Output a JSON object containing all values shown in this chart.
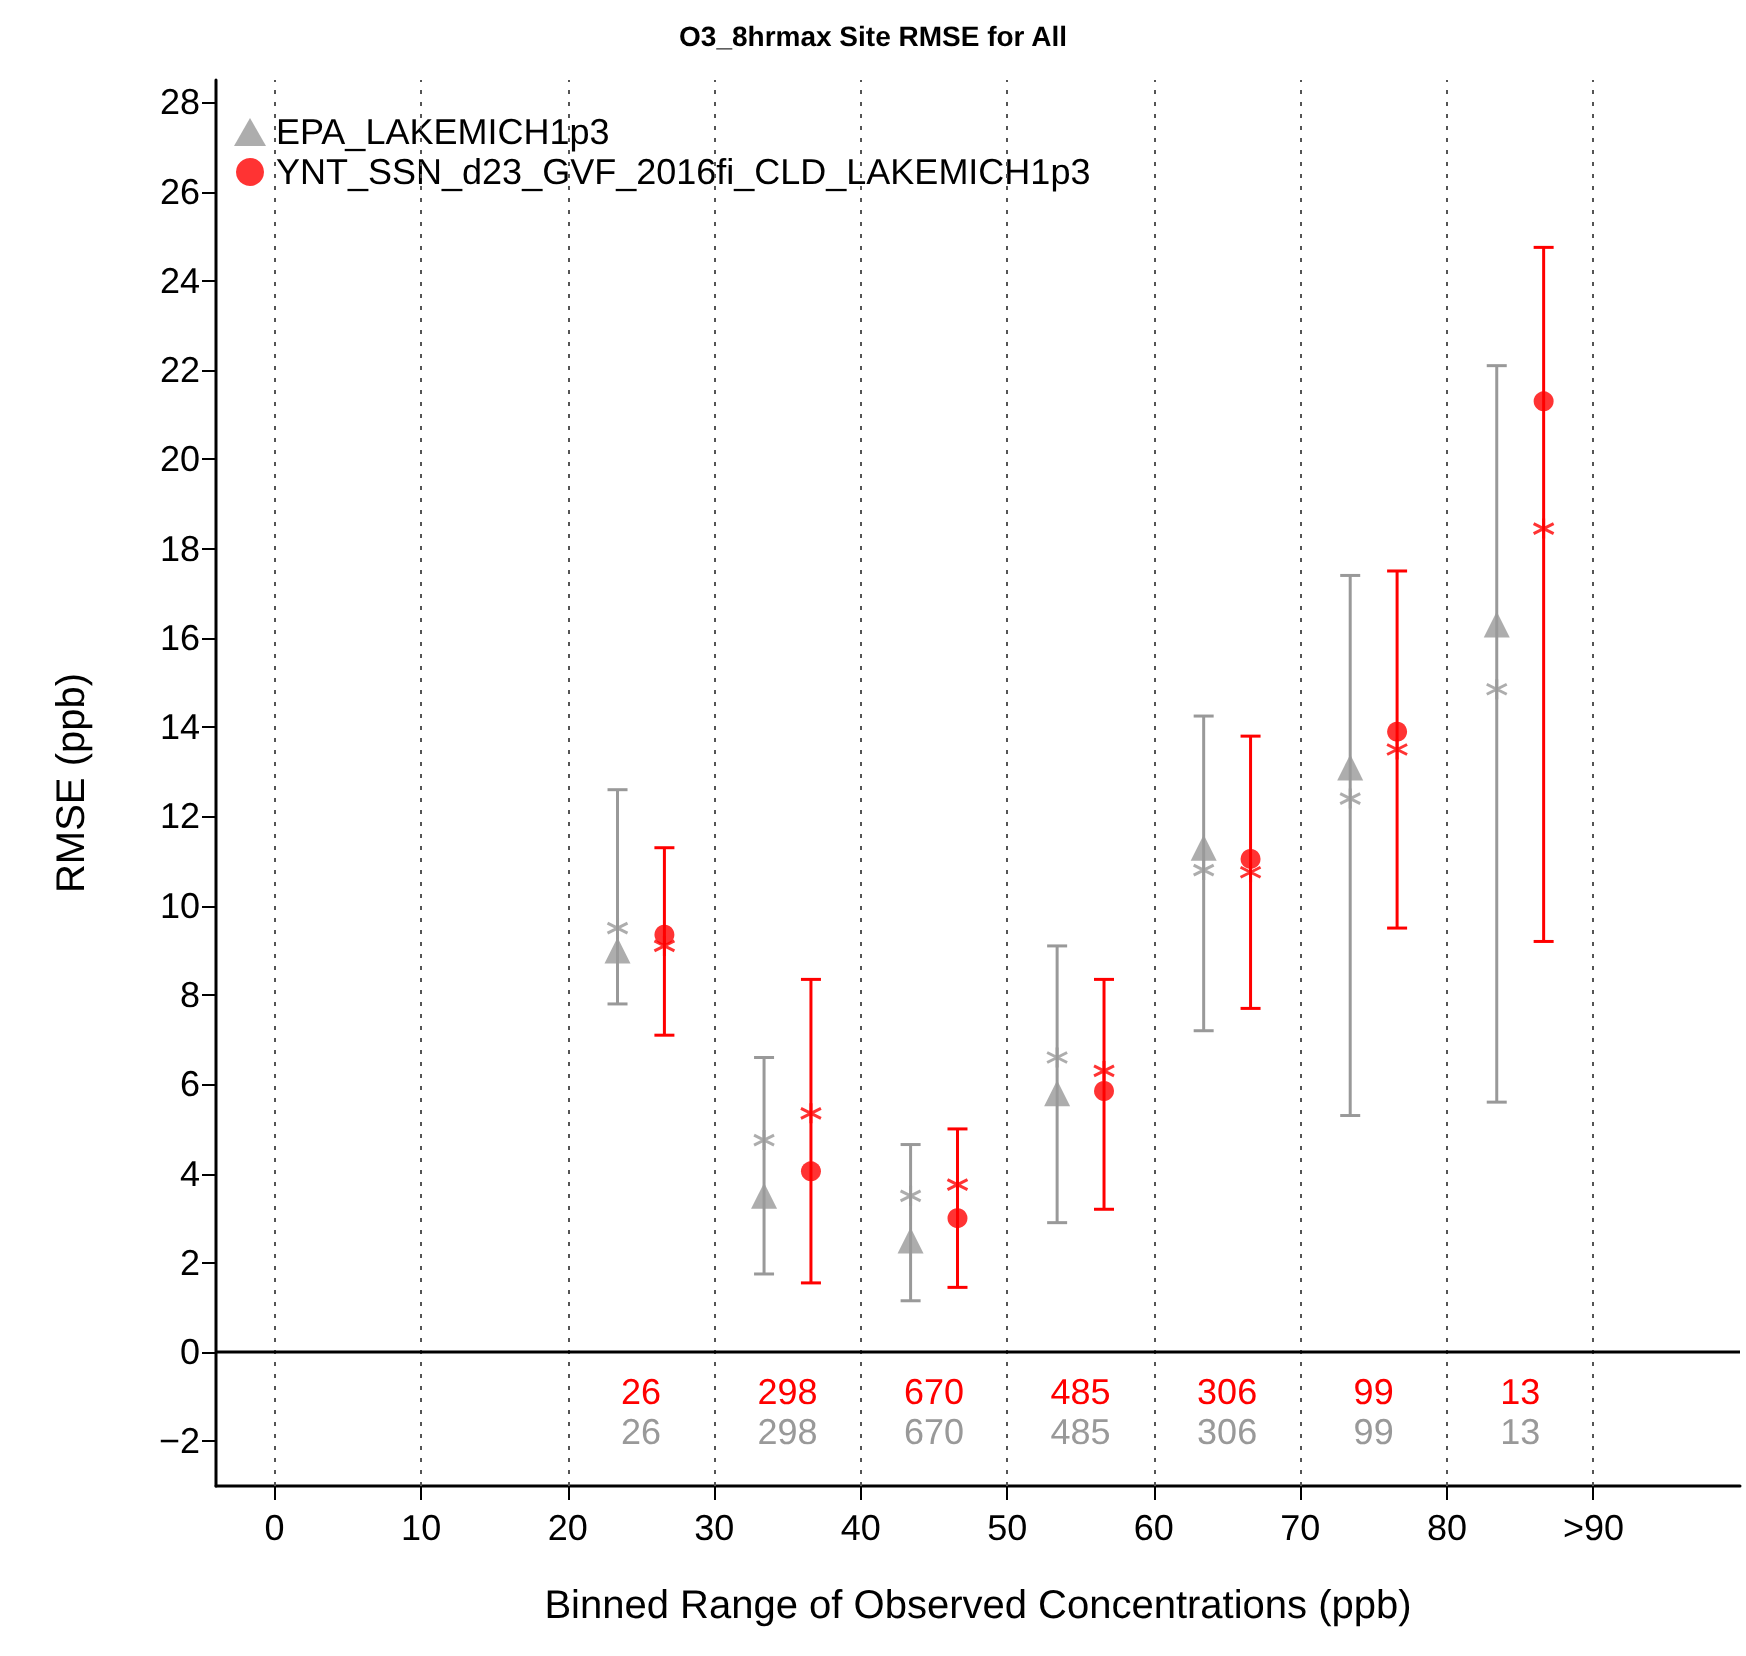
{
  "chart_data": {
    "type": "scatter",
    "title": "O3_8hrmax Site RMSE for All",
    "xlabel": "Binned Range of Observed Concentrations (ppb)",
    "ylabel": "RMSE (ppb)",
    "xlim": [
      -4,
      100
    ],
    "xticks": [
      0,
      10,
      20,
      30,
      40,
      50,
      60,
      70,
      80,
      {
        "value": 90,
        "label": ">90"
      }
    ],
    "ylim": [
      -3,
      28.5
    ],
    "yticks": [
      {
        "value": -2,
        "label": "−2"
      },
      0,
      2,
      4,
      6,
      8,
      10,
      12,
      14,
      16,
      18,
      20,
      22,
      24,
      26,
      28
    ],
    "grid": "x",
    "legend": "top left",
    "series": [
      {
        "name": "EPA_LAKEMICH1p3",
        "color": "#999999",
        "marker": "triangle",
        "x": [
          23.4,
          33.4,
          43.4,
          53.4,
          63.4,
          73.4,
          83.4
        ],
        "values": [
          9.0,
          3.5,
          2.5,
          5.8,
          11.3,
          13.1,
          16.3
        ],
        "errors": [
          [
            7.8,
            12.6
          ],
          [
            1.75,
            6.6
          ],
          [
            1.15,
            4.65
          ],
          [
            2.9,
            9.1
          ],
          [
            7.2,
            14.25
          ],
          [
            5.3,
            17.4
          ],
          [
            5.6,
            22.1
          ]
        ]
      },
      {
        "color": "#999999",
        "marker": "cross",
        "x": [
          23.4,
          33.4,
          43.4,
          53.4,
          63.4,
          73.4,
          83.4
        ],
        "values": [
          9.5,
          4.75,
          3.5,
          6.6,
          10.8,
          12.4,
          14.85
        ]
      },
      {
        "name": "YNT_SSN_d23_GVF_2016fi_CLD_LAKEMICH1p3",
        "color": "#ff0000",
        "marker": "circle",
        "x": [
          26.6,
          36.6,
          46.6,
          56.6,
          66.6,
          76.6,
          86.6
        ],
        "values": [
          9.35,
          4.05,
          3.0,
          5.85,
          11.05,
          13.9,
          21.3
        ],
        "errors": [
          [
            7.1,
            11.3
          ],
          [
            1.55,
            8.35
          ],
          [
            1.45,
            5.0
          ],
          [
            3.2,
            8.35
          ],
          [
            7.7,
            13.8
          ],
          [
            9.5,
            17.5
          ],
          [
            9.2,
            24.75
          ]
        ]
      },
      {
        "color": "#ff0000",
        "marker": "cross",
        "x": [
          26.6,
          36.6,
          46.6,
          56.6,
          66.6,
          76.6,
          86.6
        ],
        "values": [
          9.1,
          5.35,
          3.75,
          6.3,
          10.75,
          13.5,
          18.45
        ]
      }
    ],
    "ref_lines": [
      {
        "axis": "y",
        "value": 0,
        "color": "#000000",
        "line_style": "solid"
      }
    ],
    "annotations": [
      "26",
      "298",
      "670",
      "485",
      "306",
      "99",
      "13",
      "26",
      "298",
      "670",
      "485",
      "306",
      "99",
      "13"
    ]
  }
}
